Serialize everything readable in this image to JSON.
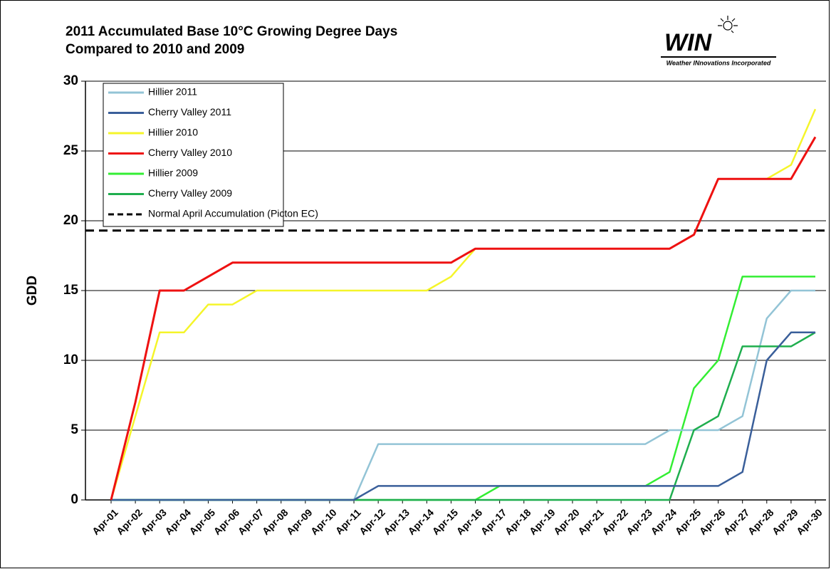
{
  "chart_data": {
    "type": "line",
    "title": "2011 Accumulated Base 10°C Growing Degree Days",
    "subtitle": "Compared to 2010 and 2009",
    "logo": "WIN",
    "logo_caption": "Weather INnovations Incorporated",
    "ylabel": "GDD",
    "categories": [
      "Apr-01",
      "Apr-02",
      "Apr-03",
      "Apr-04",
      "Apr-05",
      "Apr-06",
      "Apr-07",
      "Apr-08",
      "Apr-09",
      "Apr-10",
      "Apr-11",
      "Apr-12",
      "Apr-13",
      "Apr-14",
      "Apr-15",
      "Apr-16",
      "Apr-17",
      "Apr-18",
      "Apr-19",
      "Apr-20",
      "Apr-21",
      "Apr-22",
      "Apr-23",
      "Apr-24",
      "Apr-25",
      "Apr-26",
      "Apr-27",
      "Apr-28",
      "Apr-29",
      "Apr-30"
    ],
    "series": [
      {
        "name": "Hillier 2011",
        "color": "#93c4d6",
        "values": [
          0,
          0,
          0,
          0,
          0,
          0,
          0,
          0,
          0,
          0,
          0,
          4,
          4,
          4,
          4,
          4,
          4,
          4,
          4,
          4,
          4,
          4,
          4,
          5,
          5,
          5,
          6,
          13,
          15,
          15
        ]
      },
      {
        "name": "Cherry Valley 2011",
        "color": "#3a5f9a",
        "values": [
          0,
          0,
          0,
          0,
          0,
          0,
          0,
          0,
          0,
          0,
          0,
          1,
          1,
          1,
          1,
          1,
          1,
          1,
          1,
          1,
          1,
          1,
          1,
          1,
          1,
          1,
          2,
          10,
          12,
          12
        ]
      },
      {
        "name": "Hillier 2010",
        "color": "#f5f52a",
        "values": [
          0,
          6,
          12,
          12,
          14,
          14,
          15,
          15,
          15,
          15,
          15,
          15,
          15,
          15,
          16,
          18,
          18,
          18,
          18,
          18,
          18,
          18,
          18,
          18,
          19,
          23,
          23,
          23,
          24,
          28
        ]
      },
      {
        "name": "Cherry Valley 2010",
        "color": "#ee1111",
        "values": [
          0,
          7,
          15,
          15,
          16,
          17,
          17,
          17,
          17,
          17,
          17,
          17,
          17,
          17,
          17,
          18,
          18,
          18,
          18,
          18,
          18,
          18,
          18,
          18,
          19,
          23,
          23,
          23,
          23,
          26
        ]
      },
      {
        "name": "Hillier 2009",
        "color": "#33ee33",
        "values": [
          0,
          0,
          0,
          0,
          0,
          0,
          0,
          0,
          0,
          0,
          0,
          0,
          0,
          0,
          0,
          0,
          1,
          1,
          1,
          1,
          1,
          1,
          1,
          2,
          8,
          10,
          16,
          16,
          16,
          16
        ]
      },
      {
        "name": "Cherry Valley 2009",
        "color": "#1fae4e",
        "values": [
          0,
          0,
          0,
          0,
          0,
          0,
          0,
          0,
          0,
          0,
          0,
          0,
          0,
          0,
          0,
          0,
          0,
          0,
          0,
          0,
          0,
          0,
          0,
          0,
          5,
          6,
          11,
          11,
          11,
          12
        ]
      }
    ],
    "reference": {
      "name": "Normal April Accumulation (Picton EC)",
      "color": "#000000",
      "value": 19.3
    },
    "ylim": [
      0,
      30
    ],
    "yticks": [
      0,
      5,
      10,
      15,
      20,
      25,
      30
    ],
    "grid": true
  }
}
